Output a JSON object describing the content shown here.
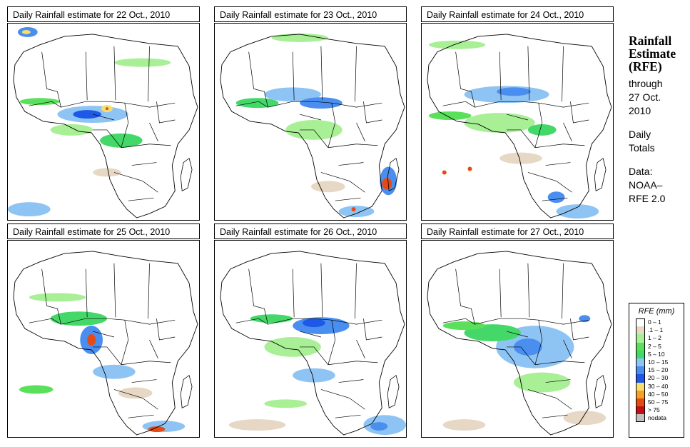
{
  "panels": [
    {
      "title": "Daily Rainfall estimate for  22 Oct., 2010"
    },
    {
      "title": "Daily Rainfall estimate for  23 Oct., 2010"
    },
    {
      "title": "Daily Rainfall estimate for  24 Oct., 2010"
    },
    {
      "title": "Daily Rainfall estimate for  25 Oct., 2010"
    },
    {
      "title": "Daily Rainfall estimate for  26 Oct., 2010"
    },
    {
      "title": "Daily Rainfall estimate for  27 Oct., 2010"
    }
  ],
  "sidebar": {
    "title_lines": [
      "Rainfall",
      "Estimate",
      "(RFE)"
    ],
    "through": "through",
    "date_line1": "27 Oct.",
    "date_line2": "2010",
    "daily": "Daily",
    "totals": "Totals",
    "data_label": "Data:",
    "source1": "NOAA–",
    "source2": "RFE 2.0"
  },
  "legend": {
    "title": "RFE (mm)",
    "items": [
      {
        "label": "0 – 1",
        "color": "#ffffff"
      },
      {
        "label": ".1 – 1",
        "color": "#e6d8c4"
      },
      {
        "label": "1 – 2",
        "color": "#a8ef96"
      },
      {
        "label": "2 – 5",
        "color": "#5ae05a"
      },
      {
        "label": "5 – 10",
        "color": "#44d868"
      },
      {
        "label": "10 – 15",
        "color": "#8ec4f4"
      },
      {
        "label": "15 – 20",
        "color": "#4a8ef0"
      },
      {
        "label": "20 – 30",
        "color": "#1e58e6"
      },
      {
        "label": "30 – 40",
        "color": "#f6de6e"
      },
      {
        "label": "40 – 50",
        "color": "#f6a028"
      },
      {
        "label": "50 – 75",
        "color": "#e64a14"
      },
      {
        "label": "> 75",
        "color": "#c21010"
      },
      {
        "label": "nodata",
        "color": "#c0c0c0"
      }
    ]
  }
}
